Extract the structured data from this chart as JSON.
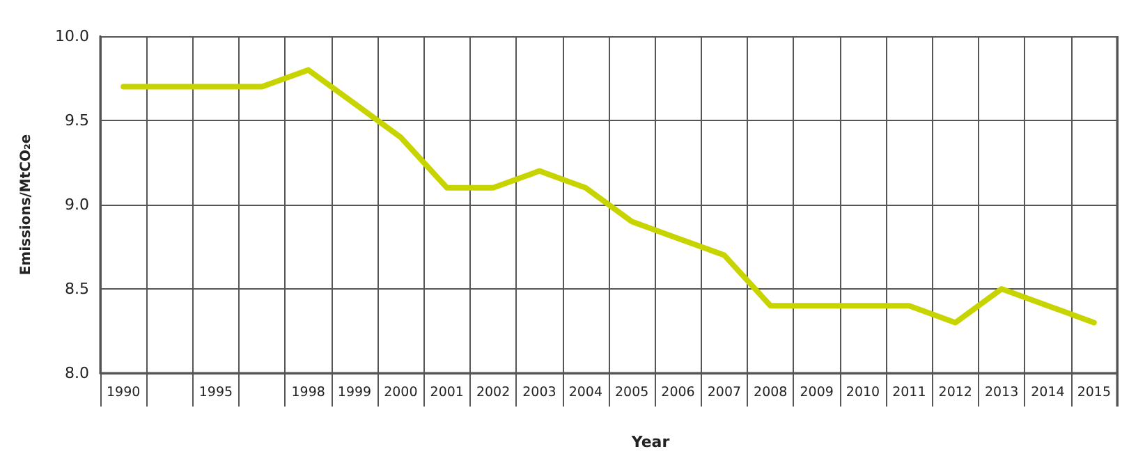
{
  "chart_data": {
    "type": "line",
    "xlabel": "Year",
    "ylabel": "Emissions/MtCO₂e",
    "categories": [
      "1990",
      null,
      "1995",
      null,
      "1998",
      "1999",
      "2000",
      "2001",
      "2002",
      "2003",
      "2004",
      "2005",
      "2006",
      "2007",
      "2008",
      "2009",
      "2010",
      "2011",
      "2012",
      "2013",
      "2014",
      "2015"
    ],
    "series": [
      {
        "color": "#c8d400",
        "values": [
          9.7,
          9.7,
          9.7,
          9.7,
          9.8,
          9.6,
          9.4,
          9.1,
          9.1,
          9.2,
          9.1,
          8.9,
          8.8,
          8.7,
          8.4,
          8.4,
          8.4,
          8.4,
          8.3,
          8.5,
          8.4,
          8.3
        ]
      }
    ],
    "ylim": [
      8.0,
      10.0
    ],
    "yticks": [
      {
        "value": 8,
        "label": "8.0"
      },
      {
        "value": 8.5,
        "label": "8.5"
      },
      {
        "value": 9,
        "label": "9.0"
      },
      {
        "value": 9.5,
        "label": "9.5"
      },
      {
        "value": 10,
        "label": "10.0"
      }
    ],
    "grid": true,
    "marker": "none",
    "line_style": "solid"
  }
}
